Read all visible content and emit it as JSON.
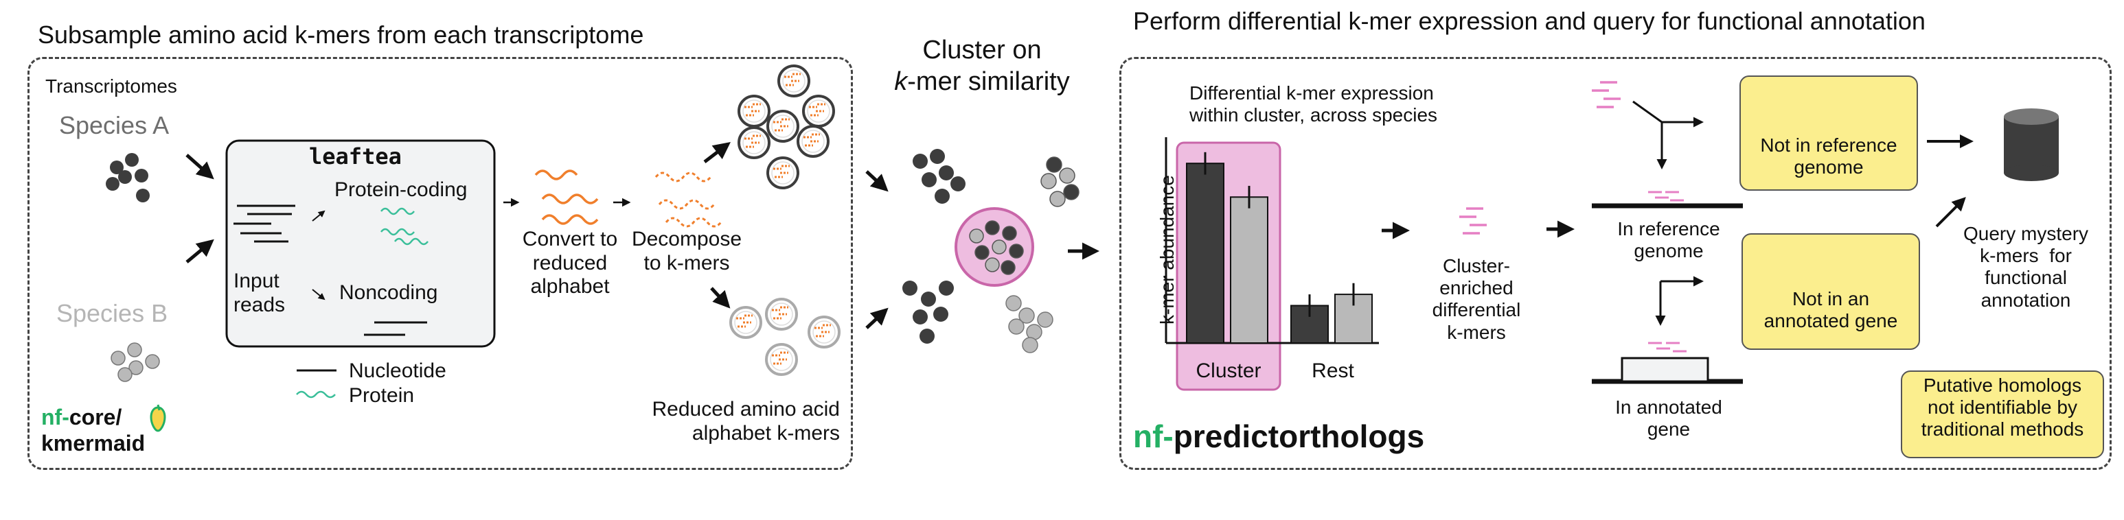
{
  "left_panel": {
    "title": "Subsample amino acid k-mers from each transcriptome",
    "transcriptomes_label": "Transcriptomes",
    "species_a": "Species A",
    "species_b": "Species B",
    "tool_name": "leaftea",
    "protein_coding": "Protein-coding",
    "noncoding": "Noncoding",
    "input_reads": "Input\nreads",
    "convert_label": "Convert to\nreduced\nalphabet",
    "decompose_label": "Decompose\nto k-mers",
    "legend_nucleotide": "Nucleotide",
    "legend_protein": "Protein",
    "reduced_kmers": "Reduced amino acid\nalphabet k-mers",
    "logo_prefix": "nf-",
    "logo_core": "core/",
    "logo_pipeline": "kmermaid"
  },
  "middle": {
    "cluster_title_line1": "Cluster on",
    "cluster_title_line2_italic": "k",
    "cluster_title_line2_rest": "-mer similarity"
  },
  "right_panel": {
    "title": "Perform differential k-mer expression and query for functional annotation",
    "chart_title": "Differential k-mer expression\nwithin cluster, across species",
    "ylabel": "k-mer abundance",
    "cluster_label": "Cluster",
    "rest_label": "Rest",
    "cluster_enriched": "Cluster-\nenriched\ndifferential\nk-mers",
    "in_reference_genome": "In reference\ngenome",
    "in_annotated_gene": "In annotated\ngene",
    "not_in_reference": "Not in reference\ngenome",
    "not_in_annotated": "Not in an\nannotated gene",
    "query_label": "Query mystery\nk-mers  for\nfunctional\nannotation",
    "putative": "Putative homologs\nnot identifiable by\ntraditional methods",
    "logo_prefix": "nf-",
    "logo_pipeline": "predictorthologs"
  },
  "colors": {
    "dark_circle": "#3d3d3d",
    "light_circle": "#b9b9b9",
    "orange": "#f07f2c",
    "teal": "#3bbf9a",
    "pink": "#e57fc4",
    "pink_fill": "#eebde0",
    "pink_stroke": "#c966a9",
    "yellow": "#fbee8e",
    "nf_green": "#24b064"
  },
  "chart_data": {
    "type": "bar",
    "categories": [
      "Cluster",
      "Rest"
    ],
    "series": [
      {
        "values": [
          9.6,
          2.0
        ]
      },
      {
        "values": [
          7.8,
          2.6
        ]
      }
    ],
    "errors": [
      {
        "values": [
          0.6,
          0.6
        ]
      },
      {
        "values": [
          0.6,
          0.6
        ]
      }
    ],
    "ylabel": "k-mer abundance",
    "ylim": [
      0,
      11
    ],
    "highlight": "Cluster"
  }
}
